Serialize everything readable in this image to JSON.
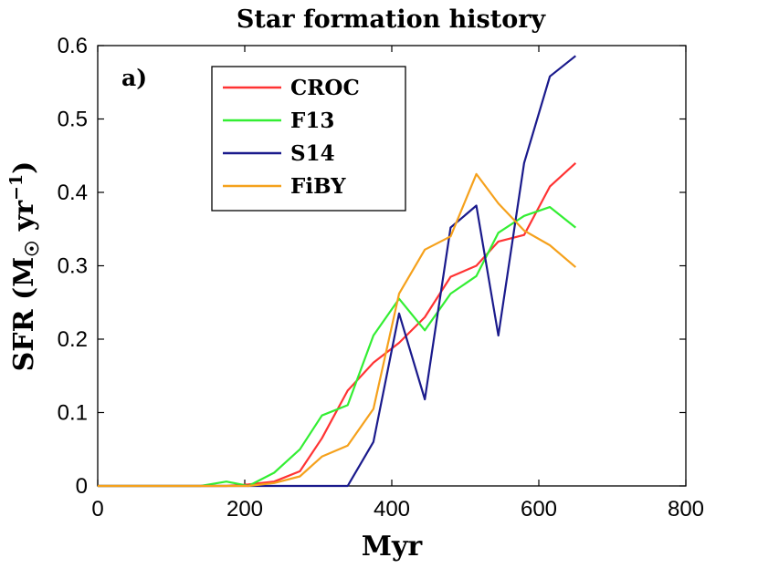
{
  "chart_data": {
    "type": "line",
    "title": "Star formation history",
    "xlabel": "Myr",
    "ylabel": "SFR (M☉ yr⁻¹)",
    "ylabel_parts": {
      "prefix": "SFR (M",
      "sun": "☉",
      "mid": " yr",
      "exp": "−1",
      "suffix": ")"
    },
    "panel_label": "a)",
    "xlim": [
      0,
      800
    ],
    "ylim": [
      0,
      0.6
    ],
    "xticks": [
      0,
      200,
      400,
      600,
      800
    ],
    "xtick_labels": [
      "0",
      "200",
      "400",
      "600",
      "800"
    ],
    "yticks": [
      0,
      0.1,
      0.2,
      0.3,
      0.4,
      0.5,
      0.6
    ],
    "ytick_labels": [
      "0",
      "0.1",
      "0.2",
      "0.3",
      "0.4",
      "0.5",
      "0.6"
    ],
    "grid": false,
    "legend_position": "top-left",
    "series": [
      {
        "name": "CROC",
        "color": "#ff3333",
        "x": [
          0,
          35,
          70,
          105,
          140,
          175,
          205,
          240,
          275,
          305,
          340,
          375,
          410,
          445,
          480,
          515,
          545,
          580,
          615,
          650
        ],
        "y": [
          0,
          0,
          0,
          0,
          0,
          0,
          0.002,
          0.006,
          0.02,
          0.065,
          0.13,
          0.168,
          0.195,
          0.23,
          0.285,
          0.3,
          0.333,
          0.342,
          0.408,
          0.44
        ]
      },
      {
        "name": "F13",
        "color": "#33ee33",
        "x": [
          0,
          35,
          70,
          105,
          140,
          175,
          205,
          240,
          275,
          305,
          340,
          375,
          410,
          445,
          480,
          515,
          545,
          580,
          615,
          650
        ],
        "y": [
          0,
          0,
          0,
          0,
          0,
          0.006,
          0,
          0.018,
          0.05,
          0.096,
          0.11,
          0.205,
          0.255,
          0.212,
          0.262,
          0.286,
          0.345,
          0.368,
          0.38,
          0.352
        ]
      },
      {
        "name": "S14",
        "color": "#1a1a8c",
        "x": [
          0,
          35,
          70,
          105,
          140,
          175,
          205,
          240,
          275,
          305,
          340,
          375,
          410,
          445,
          480,
          515,
          545,
          580,
          615,
          650
        ],
        "y": [
          0,
          0,
          0,
          0,
          0,
          0,
          0,
          0,
          0,
          0,
          0,
          0.06,
          0.235,
          0.118,
          0.352,
          0.382,
          0.205,
          0.44,
          0.558,
          0.586
        ]
      },
      {
        "name": "FiBY",
        "color": "#f5a11c",
        "x": [
          0,
          35,
          70,
          105,
          140,
          175,
          205,
          240,
          275,
          305,
          340,
          375,
          410,
          445,
          480,
          515,
          545,
          580,
          615,
          650
        ],
        "y": [
          0,
          0,
          0,
          0,
          0,
          0,
          0,
          0.004,
          0.013,
          0.04,
          0.055,
          0.105,
          0.262,
          0.322,
          0.34,
          0.425,
          0.385,
          0.348,
          0.328,
          0.298
        ]
      }
    ]
  }
}
